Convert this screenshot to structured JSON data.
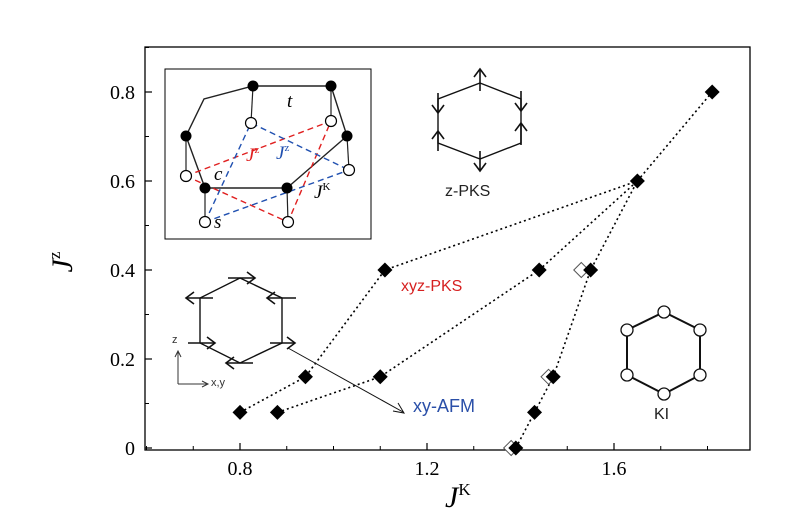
{
  "chart_data": {
    "type": "scatter",
    "xlabel": "J",
    "xlabel_sup": "K",
    "ylabel": "J",
    "ylabel_sup": "z",
    "xlim": [
      0.6,
      1.85
    ],
    "ylim": [
      -0.02,
      0.9
    ],
    "x_ticks": [
      0.8,
      1.2,
      1.6
    ],
    "y_ticks": [
      0,
      0.2,
      0.4,
      0.6,
      0.8
    ],
    "x_tick_labels": [
      "0.8",
      "1.2",
      "1.6"
    ],
    "y_tick_labels": [
      "0",
      "0.2",
      "0.4",
      "0.6",
      "0.8"
    ],
    "grid": false,
    "series": [
      {
        "marker": "filled-diamond",
        "points": [
          [
            0.8,
            0.08
          ],
          [
            0.94,
            0.16
          ],
          [
            1.11,
            0.4
          ],
          [
            1.65,
            0.6
          ]
        ]
      },
      {
        "marker": "filled-diamond",
        "points": [
          [
            0.88,
            0.08
          ],
          [
            1.1,
            0.16
          ],
          [
            1.44,
            0.4
          ],
          [
            1.65,
            0.6
          ]
        ]
      },
      {
        "marker": "filled-diamond",
        "points": [
          [
            1.39,
            0.0
          ],
          [
            1.43,
            0.08
          ],
          [
            1.47,
            0.16
          ],
          [
            1.55,
            0.4
          ],
          [
            1.65,
            0.6
          ]
        ]
      },
      {
        "marker": "filled-diamond",
        "points": [
          [
            1.65,
            0.6
          ],
          [
            1.81,
            0.8
          ]
        ]
      }
    ],
    "open_points": [
      [
        1.38,
        0.0
      ],
      [
        1.46,
        0.16
      ],
      [
        1.53,
        0.4
      ]
    ],
    "phase_labels": [
      {
        "text": "z-PKS",
        "color": "#222222"
      },
      {
        "text": "xyz-PKS",
        "color": "#d62020"
      },
      {
        "text": "xy-AFM",
        "color": "#2a4fa8"
      },
      {
        "text": "KI",
        "color": "#222222"
      }
    ],
    "inset_labels": {
      "t": "t",
      "c": "c",
      "s": "s",
      "jz1": "J",
      "jz1_sup": "z",
      "jz2": "J",
      "jz2_sup": "z",
      "jk": "J",
      "jk_sup": "K"
    },
    "small_axes": {
      "vertical": "z",
      "horizontal": "x,y"
    }
  },
  "colors": {
    "red": "#e02020",
    "blue": "#2050b0",
    "black": "#000000"
  }
}
